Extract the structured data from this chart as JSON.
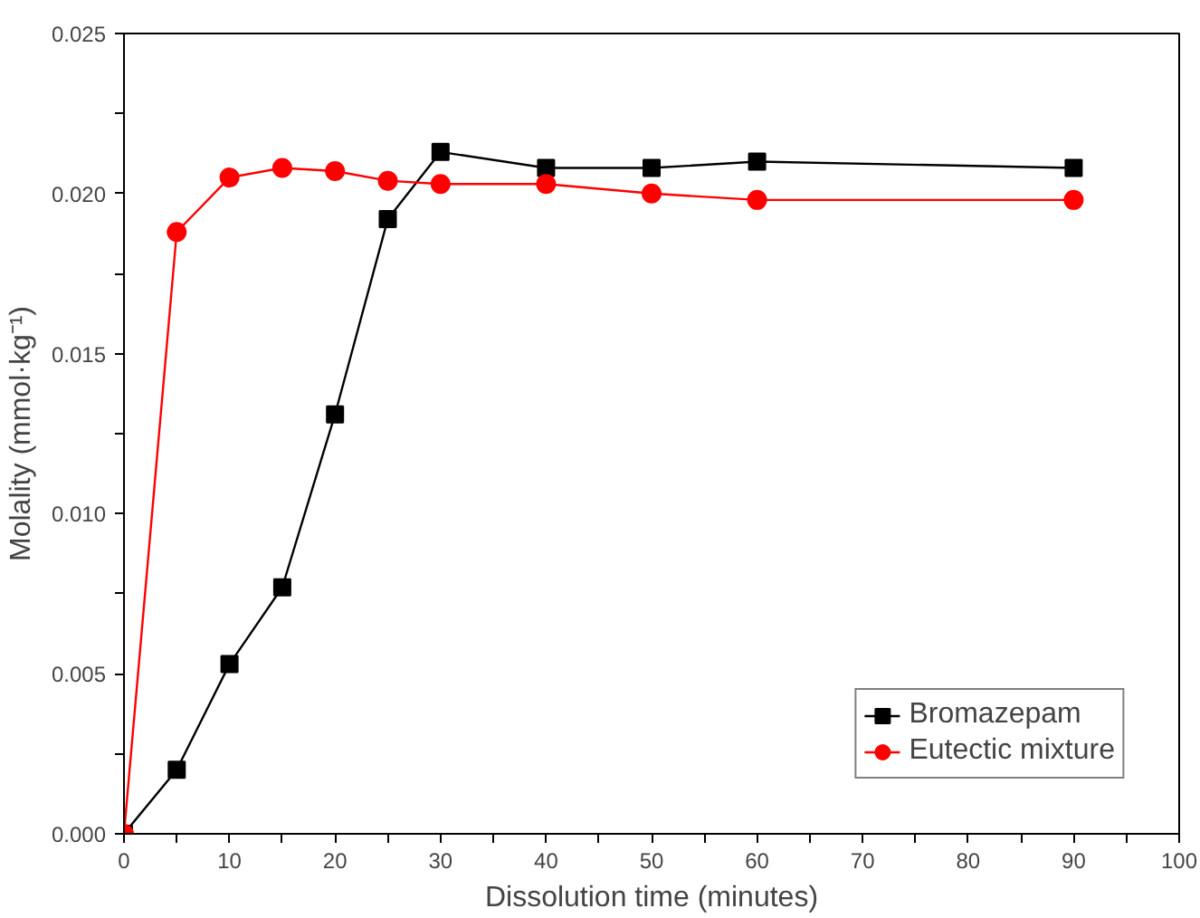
{
  "chart_data": {
    "type": "line",
    "xlabel": "Dissolution time (minutes)",
    "ylabel": "Molality (mmol·kg⁻¹)",
    "x": [
      0,
      5,
      10,
      15,
      20,
      25,
      30,
      40,
      50,
      60,
      90
    ],
    "series": [
      {
        "name": "Bromazepam",
        "color": "#000000",
        "marker": "square",
        "values": [
          0.0,
          0.002,
          0.0053,
          0.0077,
          0.0131,
          0.0192,
          0.0213,
          0.0208,
          0.0208,
          0.021,
          0.0208
        ]
      },
      {
        "name": "Eutectic mixture",
        "color": "#ff0000",
        "marker": "circle",
        "values": [
          0.0,
          0.0188,
          0.0205,
          0.0208,
          0.0207,
          0.0204,
          0.0203,
          0.0203,
          0.02,
          0.0198,
          0.0198
        ]
      }
    ],
    "xlim": [
      0,
      100
    ],
    "ylim": [
      0,
      0.025
    ],
    "xticks": [
      0,
      {
        "value": 5,
        "label": null
      },
      10,
      {
        "value": 15,
        "label": null
      },
      20,
      {
        "value": 25,
        "label": null
      },
      30,
      {
        "value": 35,
        "label": null
      },
      40,
      {
        "value": 45,
        "label": null
      },
      50,
      {
        "value": 55,
        "label": null
      },
      60,
      {
        "value": 65,
        "label": null
      },
      70,
      {
        "value": 75,
        "label": null
      },
      80,
      {
        "value": 85,
        "label": null
      },
      90,
      {
        "value": 95,
        "label": null
      },
      100
    ],
    "yticks": [
      {
        "value": 0,
        "label": "0.000"
      },
      {
        "value": 0.0025,
        "label": null
      },
      0.005,
      {
        "value": 0.0075,
        "label": null
      },
      {
        "value": 0.01,
        "label": "0.010"
      },
      {
        "value": 0.0125,
        "label": null
      },
      0.015,
      {
        "value": 0.0175,
        "label": null
      },
      {
        "value": 0.02,
        "label": "0.020"
      },
      {
        "value": 0.0225,
        "label": null
      },
      0.025
    ],
    "grid": false,
    "legend": "bottom right"
  }
}
